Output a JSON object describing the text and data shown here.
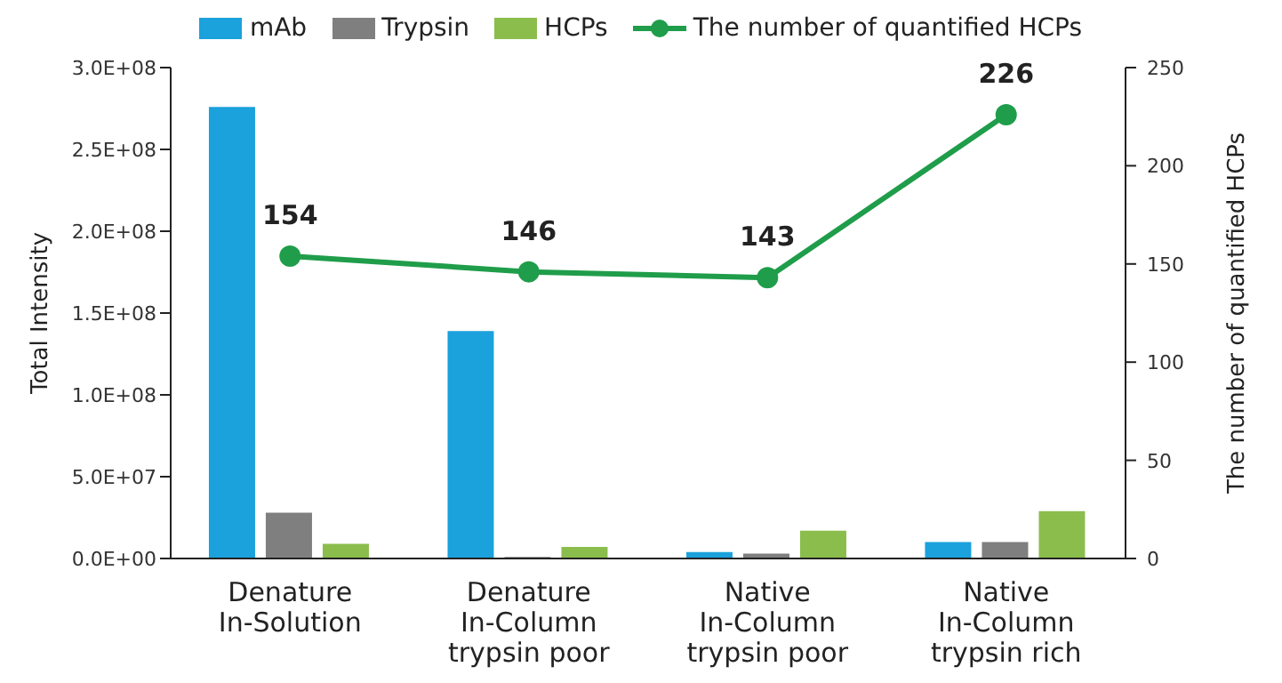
{
  "chart_data": {
    "type": "bar",
    "categories": [
      "Denature\nIn-Solution",
      "Denature\nIn-Column\ntrypsin poor",
      "Native\nIn-Column\ntrypsin poor",
      "Native\nIn-Column\ntrypsin rich"
    ],
    "ylabel": "Total Intensity",
    "y2label": "The number of quantified HCPs",
    "ylim": [
      0,
      300000000
    ],
    "yticks": [
      {
        "value": 0,
        "label": "0.0E+00"
      },
      {
        "value": 50000000,
        "label": "5.0E+07"
      },
      {
        "value": 100000000,
        "label": "1.0E+08"
      },
      {
        "value": 150000000,
        "label": "1.5E+08"
      },
      {
        "value": 200000000,
        "label": "2.0E+08"
      },
      {
        "value": 250000000,
        "label": "2.5E+08"
      },
      {
        "value": 300000000,
        "label": "3.0E+08"
      }
    ],
    "y2lim": [
      0,
      250
    ],
    "y2ticks": [
      0,
      50,
      100,
      150,
      200,
      250
    ],
    "series": [
      {
        "name": "mAb",
        "color": "#1ba1dc",
        "values": [
          276000000,
          139000000,
          4000000,
          10000000
        ]
      },
      {
        "name": "Trypsin",
        "color": "#7f7f7f",
        "values": [
          28000000,
          1000000,
          3000000,
          10000000
        ]
      },
      {
        "name": "HCPs",
        "color": "#8bbd4c",
        "values": [
          9000000,
          7000000,
          17000000,
          29000000
        ]
      },
      {
        "name": "The number of quantified HCPs",
        "type": "line",
        "axis": "y2",
        "color": "#1f9d4a",
        "values": [
          154,
          146,
          143,
          226
        ],
        "data_labels": true,
        "marker": "circle"
      }
    ],
    "legend": "top"
  }
}
